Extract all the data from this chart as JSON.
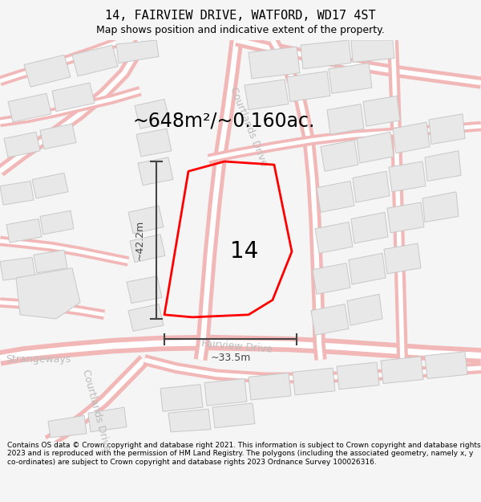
{
  "title": "14, FAIRVIEW DRIVE, WATFORD, WD17 4ST",
  "subtitle": "Map shows position and indicative extent of the property.",
  "area_text": "~648m²/~0.160ac.",
  "number_label": "14",
  "dim_vertical": "~42.2m",
  "dim_horizontal": "~33.5m",
  "street_courtlands_diag": "Courtlands Drive",
  "street_fairview": "Fairview Drive",
  "street_strangeways": "Strangeways",
  "street_courtlands_vert": "Courtlands Drive",
  "copyright_text": "Contains OS data © Crown copyright and database right 2021. This information is subject to Crown copyright and database rights 2023 and is reproduced with the permission of HM Land Registry. The polygons (including the associated geometry, namely x, y co-ordinates) are subject to Crown copyright and database rights 2023 Ordnance Survey 100026316.",
  "bg_color": "#f5f5f5",
  "map_bg": "#ffffff",
  "road_line_color": "#f0aaaa",
  "road_fill_color": "#ffffff",
  "building_color": "#e8e8e8",
  "building_edge_color": "#c8c8c8",
  "plot_color": "#ff0000",
  "dim_color": "#444444",
  "street_color": "#bbbbbb",
  "title_fontsize": 11,
  "subtitle_fontsize": 9,
  "area_fontsize": 17,
  "label_fontsize": 20,
  "street_fontsize": 9,
  "copyright_fontsize": 6.5
}
